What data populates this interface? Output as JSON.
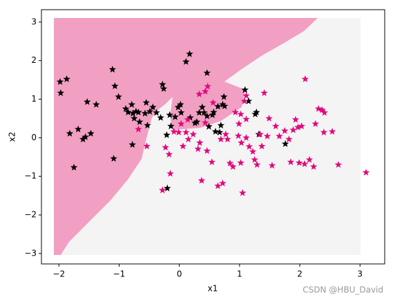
{
  "chart_data": {
    "type": "scatter",
    "x_label": "x1",
    "y_label": "x2",
    "xlim": [
      -2.29,
      3.41
    ],
    "ylim": [
      -3.27,
      3.32
    ],
    "xticks": [
      {
        "value": -2,
        "label": "−2"
      },
      {
        "value": -1,
        "label": "−1"
      },
      0,
      1,
      2,
      3
    ],
    "yticks": [
      {
        "value": -3,
        "label": "−3"
      },
      {
        "value": -2,
        "label": "−2"
      },
      {
        "value": -1,
        "label": "−1"
      },
      0,
      1,
      2,
      3
    ],
    "marker": "star",
    "watermark": "CSDN @HBU_David",
    "series": [
      {
        "color": "#000000",
        "x": [
          -1.98,
          -1.97,
          -1.87,
          -1.82,
          -1.75,
          -1.68,
          -1.6,
          -1.56,
          -1.53,
          -1.47,
          -1.38,
          -1.11,
          -1.09,
          -1.07,
          -1.01,
          -0.89,
          -0.85,
          -0.79,
          -0.77,
          -0.78,
          -0.72,
          -0.75,
          -0.68,
          -0.66,
          -0.57,
          -0.55,
          -0.49,
          -0.53,
          -0.44,
          -0.38,
          -0.28,
          -0.26,
          -0.31,
          -0.21,
          -0.16,
          -0.14,
          -0.07,
          -0.02,
          0.02,
          0.03,
          0.11,
          0.17,
          0.18,
          0.26,
          0.29,
          0.33,
          0.38,
          0.46,
          0.41,
          0.46,
          0.49,
          0.55,
          0.57,
          0.6,
          0.64,
          0.67,
          0.69,
          0.72,
          0.74,
          0.75,
          1.15,
          1.26,
          1.28,
          1.32,
          -0.2,
          1.76,
          1.09
        ],
        "y": [
          1.45,
          1.16,
          1.52,
          0.11,
          -0.77,
          0.22,
          -0.04,
          0.02,
          0.93,
          0.11,
          0.86,
          1.77,
          -0.54,
          1.34,
          1.06,
          0.75,
          0.66,
          0.86,
          0.63,
          -0.18,
          0.68,
          0.5,
          0.66,
          0.41,
          0.63,
          0.91,
          0.68,
          0.32,
          0.79,
          0.65,
          1.38,
          1.27,
          0.52,
          0.07,
          0.59,
          0.3,
          0.54,
          0.79,
          0.86,
          0.65,
          1.97,
          2.17,
          0.52,
          0.38,
          0.41,
          0.65,
          0.79,
          1.68,
          0.65,
          0.56,
          0.29,
          0.59,
          0.66,
          0.16,
          0.81,
          0.14,
          0.32,
          0.86,
          1.06,
          0.82,
          0.95,
          0.61,
          0.66,
          0.09,
          -1.31,
          -0.16,
          1.24
        ]
      },
      {
        "color": "#e0097d",
        "x": [
          -0.68,
          -0.54,
          -0.28,
          -0.23,
          -0.15,
          -0.17,
          -0.09,
          -0.01,
          0.03,
          0.11,
          0.14,
          0.06,
          0.15,
          0.23,
          0.31,
          0.33,
          0.34,
          0.37,
          0.43,
          0.43,
          0.46,
          0.54,
          0.56,
          0.64,
          0.69,
          0.72,
          0.77,
          0.8,
          0.84,
          0.89,
          0.93,
          0.98,
          1.02,
          1.02,
          1.03,
          1.05,
          1.08,
          1.11,
          1.11,
          1.16,
          1.22,
          1.25,
          1.29,
          1.34,
          1.37,
          1.41,
          1.46,
          1.49,
          1.54,
          1.6,
          1.66,
          1.75,
          1.82,
          1.85,
          1.89,
          1.93,
          1.97,
          1.99,
          2.03,
          2.08,
          2.09,
          2.16,
          2.23,
          2.26,
          2.31,
          2.37,
          2.4,
          2.41,
          2.54,
          2.64,
          3.1,
          0.99,
          1.11,
          0.47
        ],
        "y": [
          0.22,
          -0.22,
          -1.36,
          -0.25,
          -0.93,
          -0.43,
          0.16,
          0.14,
          0.36,
          0.14,
          0.47,
          -0.22,
          -0.04,
          0.09,
          -0.29,
          1.13,
          -0.13,
          -1.11,
          1.2,
          0.39,
          -0.34,
          -0.63,
          0.91,
          -1.25,
          -0.04,
          -1.18,
          0.09,
          -0.04,
          -0.66,
          -0.75,
          0.66,
          0.05,
          0.61,
          -0.65,
          -0.13,
          -1.43,
          0.95,
          0,
          0.48,
          -0.23,
          -0.36,
          -0.57,
          -0.7,
          0.09,
          -0.22,
          1.16,
          0.04,
          0.5,
          -0.72,
          0.3,
          0.04,
          0.18,
          -0.04,
          -0.63,
          0.2,
          0.47,
          0.27,
          -0.65,
          0.3,
          -0.68,
          1.52,
          -0.57,
          -0.75,
          0.36,
          0.75,
          0.72,
          0.14,
          0.65,
          0.16,
          -0.7,
          -0.9,
          0.36,
          1.09,
          1.33
        ]
      }
    ]
  }
}
